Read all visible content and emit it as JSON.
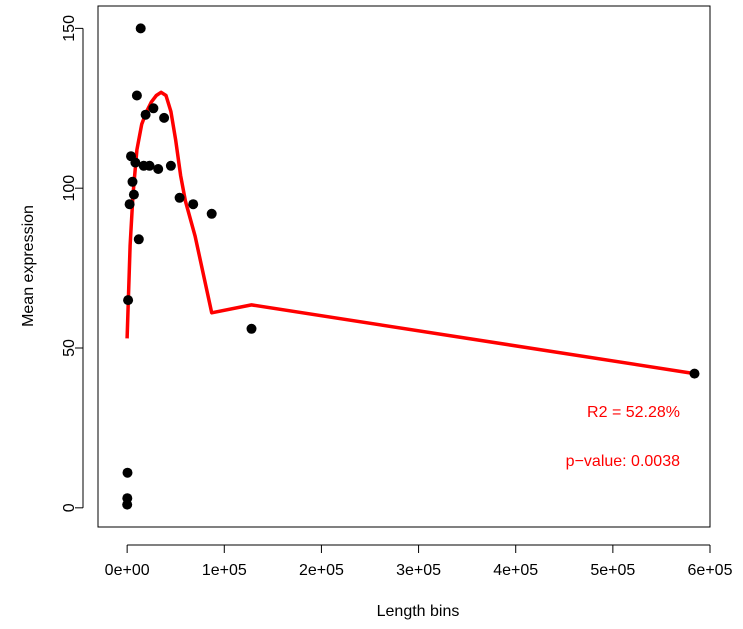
{
  "chart_data": {
    "type": "scatter",
    "xlabel": "Length bins",
    "ylabel": "Mean expression",
    "xlim": [
      -30000,
      600000
    ],
    "ylim": [
      -6,
      157
    ],
    "x_ticks": [
      0,
      100000,
      200000,
      300000,
      400000,
      500000,
      600000
    ],
    "x_tick_labels": [
      "0e+00",
      "1e+05",
      "2e+05",
      "3e+05",
      "4e+05",
      "5e+05",
      "6e+05"
    ],
    "y_ticks": [
      0,
      50,
      100,
      150
    ],
    "y_tick_labels": [
      "0",
      "50",
      "100",
      "150"
    ],
    "grid": false,
    "legend": "none",
    "series": [
      {
        "type": "scatter",
        "color": "#000000",
        "points": [
          {
            "x": 100,
            "y": 1
          },
          {
            "x": 200,
            "y": 3
          },
          {
            "x": 400,
            "y": 11
          },
          {
            "x": 1000,
            "y": 65
          },
          {
            "x": 2500,
            "y": 95
          },
          {
            "x": 4000,
            "y": 110
          },
          {
            "x": 5500,
            "y": 102
          },
          {
            "x": 7000,
            "y": 98
          },
          {
            "x": 8500,
            "y": 108
          },
          {
            "x": 10000,
            "y": 129
          },
          {
            "x": 12000,
            "y": 84
          },
          {
            "x": 14000,
            "y": 150
          },
          {
            "x": 17000,
            "y": 107
          },
          {
            "x": 19000,
            "y": 123
          },
          {
            "x": 23000,
            "y": 107
          },
          {
            "x": 27000,
            "y": 125
          },
          {
            "x": 32000,
            "y": 106
          },
          {
            "x": 38000,
            "y": 122
          },
          {
            "x": 45000,
            "y": 107
          },
          {
            "x": 54000,
            "y": 97
          },
          {
            "x": 68000,
            "y": 95
          },
          {
            "x": 87000,
            "y": 92
          },
          {
            "x": 128000,
            "y": 56
          },
          {
            "x": 584000,
            "y": 42
          }
        ]
      },
      {
        "type": "line",
        "color": "#ff0000",
        "points": [
          {
            "x": 0,
            "y": 53
          },
          {
            "x": 3000,
            "y": 82
          },
          {
            "x": 6000,
            "y": 98
          },
          {
            "x": 10000,
            "y": 112
          },
          {
            "x": 15000,
            "y": 120
          },
          {
            "x": 20000,
            "y": 124
          },
          {
            "x": 25000,
            "y": 127
          },
          {
            "x": 30000,
            "y": 129
          },
          {
            "x": 35000,
            "y": 130
          },
          {
            "x": 40000,
            "y": 129
          },
          {
            "x": 45000,
            "y": 124
          },
          {
            "x": 50000,
            "y": 115
          },
          {
            "x": 55000,
            "y": 104
          },
          {
            "x": 60000,
            "y": 96
          },
          {
            "x": 70000,
            "y": 85
          },
          {
            "x": 87000,
            "y": 61
          },
          {
            "x": 128000,
            "y": 63.5
          },
          {
            "x": 584000,
            "y": 42
          }
        ]
      }
    ],
    "annotations": [
      {
        "text": "R2 = 52.28%",
        "color": "#ff0000"
      },
      {
        "text": "p−value: 0.0038",
        "color": "#ff0000"
      }
    ]
  }
}
